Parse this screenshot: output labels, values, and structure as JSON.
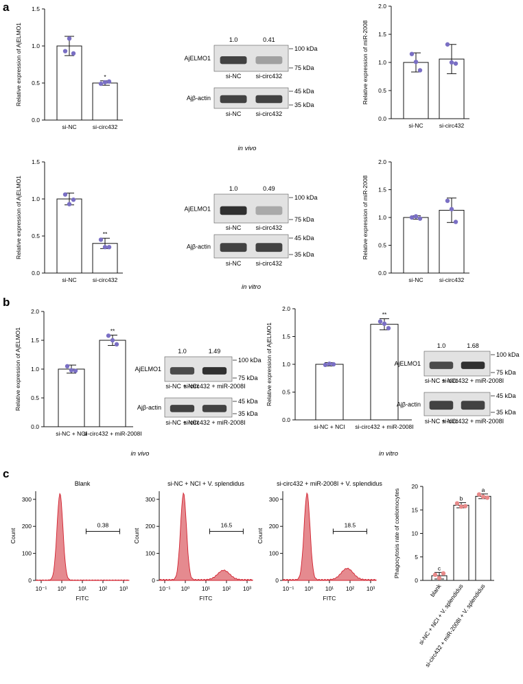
{
  "panels": {
    "a": "a",
    "b": "b",
    "c": "c"
  },
  "conditions": {
    "in_vivo": "in vivo",
    "in_vitro": "in vitro"
  },
  "colors": {
    "bar_fill": "#ffffff",
    "bar_edge": "#111111",
    "point_blue": "#7a6fc4",
    "point_pink": "#e88a8a",
    "hist_fill": "#e58a8f",
    "hist_edge": "#d1202e",
    "blot_bg": "#e2e2e2",
    "band": "#262626"
  },
  "blots": [
    {
      "id": "a_vivo",
      "values": [
        "1.0",
        "0.41"
      ],
      "row1": "AjELMO1",
      "row2": "Ajβ-actin",
      "lanes": [
        "si-NC",
        "si-circ432"
      ],
      "markers1": [
        "100 kDa",
        "75 kDa"
      ],
      "markers2": [
        "45 kDa",
        "35 kDa"
      ],
      "intensity": [
        0.85,
        0.35
      ]
    },
    {
      "id": "a_vitro",
      "values": [
        "1.0",
        "0.49"
      ],
      "row1": "AjELMO1",
      "row2": "Ajβ-actin",
      "lanes": [
        "si-NC",
        "si-circ432"
      ],
      "markers1": [
        "100 kDa",
        "75 kDa"
      ],
      "markers2": [
        "45 kDa",
        "35 kDa"
      ],
      "intensity": [
        0.95,
        0.3
      ]
    },
    {
      "id": "b_vivo",
      "values": [
        "1.0",
        "1.49"
      ],
      "row1": "AjELMO1",
      "row2": "Ajβ-actin",
      "lanes": [
        "si-NC + NCI",
        "si-circ432 + miR-2008I"
      ],
      "markers1": [
        "100 kDa",
        "75 kDa"
      ],
      "markers2": [
        "45 kDa",
        "35 kDa"
      ],
      "intensity": [
        0.8,
        0.95
      ]
    },
    {
      "id": "b_vitro",
      "values": [
        "1.0",
        "1.68"
      ],
      "row1": "AjELMO1",
      "row2": "Ajβ-actin",
      "lanes": [
        "si-NC + NCI",
        "si-circ432 + miR-2008I"
      ],
      "markers1": [
        "100 kDa",
        "75 kDa"
      ],
      "markers2": [
        "45 kDa",
        "35 kDa"
      ],
      "intensity": [
        0.8,
        0.95
      ]
    }
  ],
  "chart_data": [
    {
      "id": "a_vivo_elmo",
      "type": "bar",
      "categories": [
        "si-NC",
        "si-circ432"
      ],
      "values": [
        1.0,
        0.5
      ],
      "errors": [
        0.13,
        0.03
      ],
      "points": [
        [
          0.93,
          1.1,
          0.9
        ],
        [
          0.49,
          0.51,
          0.52
        ]
      ],
      "sig": [
        "",
        "*"
      ],
      "ylabel": "Relative expression of AjELMO1",
      "ylim": [
        0,
        1.5
      ],
      "ticks": [
        "0.0",
        "0.5",
        "1.0",
        "1.5"
      ]
    },
    {
      "id": "a_vivo_mir",
      "type": "bar",
      "categories": [
        "si-NC",
        "si-circ432"
      ],
      "values": [
        1.0,
        1.06
      ],
      "errors": [
        0.17,
        0.26
      ],
      "points": [
        [
          1.15,
          1.01,
          0.86
        ],
        [
          1.32,
          1.0,
          0.98
        ]
      ],
      "sig": [
        "",
        ""
      ],
      "ylabel": "Relative expression of miR-2008",
      "ylim": [
        0,
        2.0
      ],
      "ticks": [
        "0.0",
        "0.5",
        "1.0",
        "1.5",
        "2.0"
      ]
    },
    {
      "id": "a_vitro_elmo",
      "type": "bar",
      "categories": [
        "si-NC",
        "si-circ432"
      ],
      "values": [
        1.0,
        0.4
      ],
      "errors": [
        0.08,
        0.07
      ],
      "points": [
        [
          1.06,
          0.93,
          0.99
        ],
        [
          0.45,
          0.35,
          0.35
        ]
      ],
      "sig": [
        "",
        "**"
      ],
      "ylabel": "Relative expression of AjELMO1",
      "ylim": [
        0,
        1.5
      ],
      "ticks": [
        "0.0",
        "0.5",
        "1.0",
        "1.5"
      ]
    },
    {
      "id": "a_vitro_mir",
      "type": "bar",
      "categories": [
        "si-NC",
        "si-circ432"
      ],
      "values": [
        1.0,
        1.13
      ],
      "errors": [
        0.03,
        0.22
      ],
      "points": [
        [
          1.0,
          1.02,
          0.98
        ],
        [
          1.3,
          1.15,
          0.92
        ]
      ],
      "sig": [
        "",
        ""
      ],
      "ylabel": "Relative expression of miR-2008",
      "ylim": [
        0,
        2.0
      ],
      "ticks": [
        "0.0",
        "0.5",
        "1.0",
        "1.5",
        "2.0"
      ]
    },
    {
      "id": "b_vivo_elmo",
      "type": "bar",
      "categories": [
        "si-NC + NCI",
        "si-circ432 + miR-2008I"
      ],
      "values": [
        1.0,
        1.5
      ],
      "errors": [
        0.07,
        0.09
      ],
      "points": [
        [
          1.05,
          0.98,
          0.97
        ],
        [
          1.58,
          1.5,
          1.43
        ]
      ],
      "sig": [
        "",
        "**"
      ],
      "ylabel": "Relative expression of AjELMO1",
      "ylim": [
        0,
        2.0
      ],
      "ticks": [
        "0.0",
        "0.5",
        "1.0",
        "1.5",
        "2.0"
      ]
    },
    {
      "id": "b_vitro_elmo",
      "type": "bar",
      "categories": [
        "si-NC + NCI",
        "si-circ432 + miR-2008I"
      ],
      "values": [
        1.0,
        1.72
      ],
      "errors": [
        0.03,
        0.1
      ],
      "points": [
        [
          0.99,
          1.01,
          1.0
        ],
        [
          1.77,
          1.73,
          1.65
        ]
      ],
      "sig": [
        "",
        "**"
      ],
      "ylabel": "Relative expression of AjELMO1",
      "ylim": [
        0,
        2.0
      ],
      "ticks": [
        "0.0",
        "0.5",
        "1.0",
        "1.5",
        "2.0"
      ]
    },
    {
      "id": "c_phago",
      "type": "bar",
      "categories": [
        "blank",
        "si-NC + NCI + V. splendidus",
        "si-circ432 + miR-2008I + V. splendidus"
      ],
      "values": [
        1.0,
        16.0,
        17.9
      ],
      "errors": [
        0.7,
        0.55,
        0.5
      ],
      "points": [
        [
          1.2,
          0.5,
          1.5
        ],
        [
          16.4,
          15.7,
          15.8
        ],
        [
          18.3,
          17.8,
          17.6
        ]
      ],
      "sig": [
        "c",
        "b",
        "a"
      ],
      "ylabel": "Phagocytosis rate of coelomocytes",
      "ylim": [
        0,
        20
      ],
      "ticks": [
        "0",
        "5",
        "10",
        "15",
        "20"
      ]
    }
  ],
  "histograms": [
    {
      "title": "Blank",
      "gate": "0.38",
      "ylabel": "Count",
      "xlabel": "FITC",
      "yticks": [
        "0",
        "100",
        "200",
        "300"
      ],
      "xticks": [
        "10⁻¹",
        "10⁰",
        "10¹",
        "10²",
        "10³"
      ],
      "second_peak": 0
    },
    {
      "title": "si-NC + NCI + V. splendidus",
      "gate": "16.5",
      "ylabel": "Count",
      "xlabel": "FITC",
      "yticks": [
        "0",
        "100",
        "200",
        "300"
      ],
      "xticks": [
        "10⁻¹",
        "10⁰",
        "10¹",
        "10²",
        "10³"
      ],
      "second_peak": 35
    },
    {
      "title": "si-circ432 + miR-2008I + V. splendidus",
      "gate": "18.5",
      "ylabel": "Count",
      "xlabel": "FITC",
      "yticks": [
        "0",
        "100",
        "200",
        "300"
      ],
      "xticks": [
        "10⁻¹",
        "10⁰",
        "10¹",
        "10²",
        "10³"
      ],
      "second_peak": 42
    }
  ]
}
